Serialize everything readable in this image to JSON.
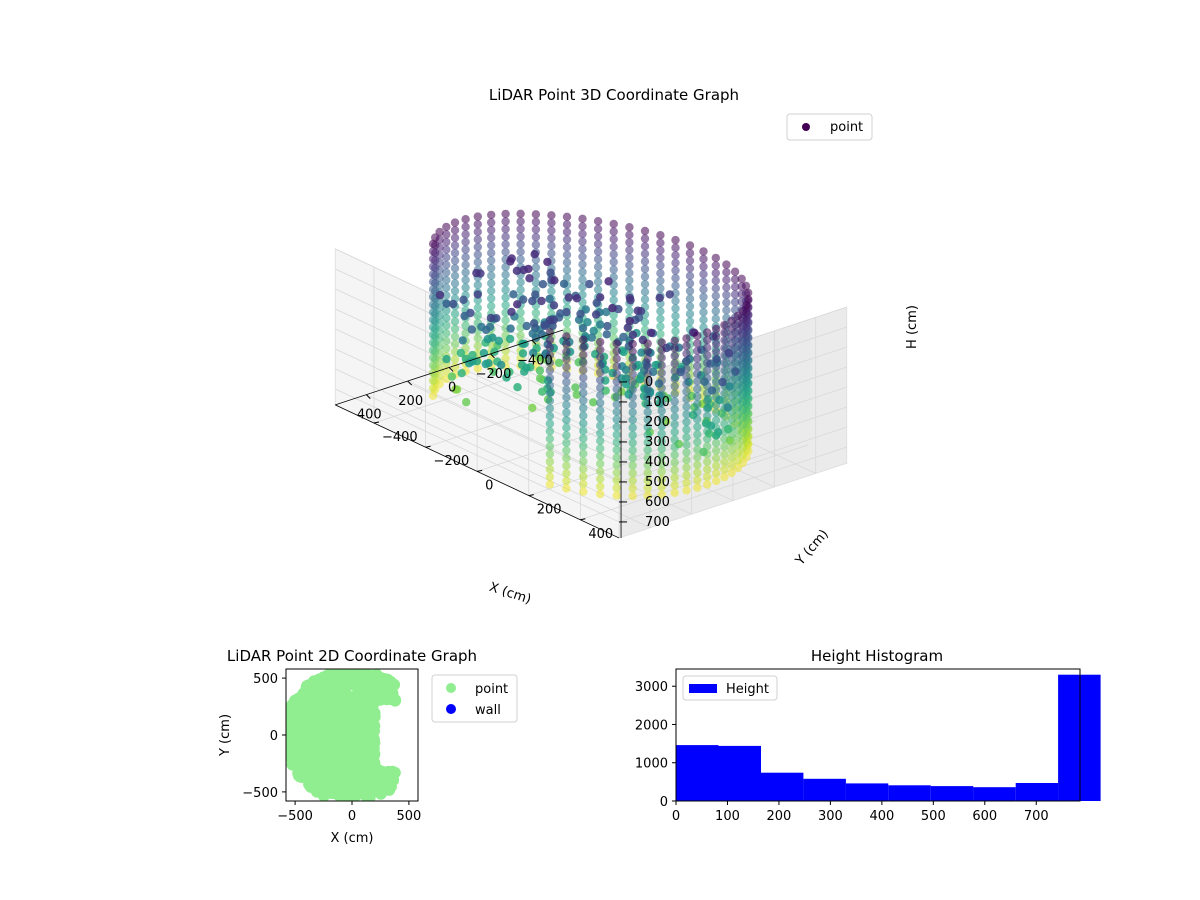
{
  "chart_data": [
    {
      "type": "scatter3d",
      "title": "LiDAR Point 3D Coordinate Graph",
      "xlabel": "X (cm)",
      "ylabel": "Y (cm)",
      "zlabel": "H (cm)",
      "x_ticks": [
        "−400",
        "−200",
        "0",
        "200",
        "400"
      ],
      "y_ticks": [
        "−400",
        "−200",
        "0",
        "200",
        "400"
      ],
      "z_ticks": [
        "0",
        "100",
        "200",
        "300",
        "400",
        "500",
        "600",
        "700"
      ],
      "xlim": [
        -550,
        550
      ],
      "ylim": [
        -550,
        550
      ],
      "zlim": [
        0,
        780
      ],
      "z_inverted": true,
      "colormap": "viridis",
      "legend": [
        {
          "label": "point",
          "color": "#440154"
        }
      ],
      "legend_position": "top-right",
      "grid": true
    },
    {
      "type": "scatter",
      "title": "LiDAR Point 2D Coordinate Graph",
      "xlabel": "X (cm)",
      "ylabel": "Y (cm)",
      "x_ticks": [
        "−500",
        "0",
        "500"
      ],
      "y_ticks": [
        "500",
        "0",
        "−500"
      ],
      "xlim": [
        -580,
        580
      ],
      "ylim": [
        -580,
        580
      ],
      "series": [
        {
          "name": "point",
          "color": "#90ee90"
        },
        {
          "name": "wall",
          "color": "#0000ff"
        }
      ],
      "legend_position": "outside-right"
    },
    {
      "type": "bar",
      "title": "Height Histogram",
      "x_ticks": [
        "0",
        "100",
        "200",
        "300",
        "400",
        "500",
        "600",
        "700"
      ],
      "y_ticks": [
        "0",
        "1000",
        "2000",
        "3000"
      ],
      "xlim": [
        0,
        785
      ],
      "ylim": [
        0,
        3450
      ],
      "bin_width": 82.5,
      "bins_start": [
        0,
        82.5,
        165,
        247.5,
        330,
        412.5,
        495,
        577.5,
        660,
        742.5
      ],
      "values": [
        1460,
        1440,
        740,
        580,
        460,
        410,
        390,
        360,
        470,
        3300
      ],
      "series": [
        {
          "name": "Height",
          "color": "#0000ff"
        }
      ],
      "legend_position": "top-left"
    }
  ]
}
